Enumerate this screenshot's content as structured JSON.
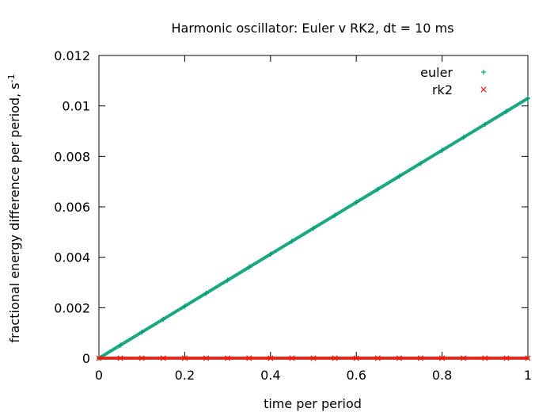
{
  "chart_data": {
    "type": "scatter",
    "title": "Harmonic oscillator: Euler v RK2, dt = 10 ms",
    "xlabel": "time per period",
    "ylabel_main": "fractional energy difference per period, s",
    "ylabel_sup": "-1",
    "xlim": [
      0,
      1
    ],
    "ylim": [
      0,
      0.012
    ],
    "xticks": [
      0,
      0.2,
      0.4,
      0.6,
      0.8,
      1
    ],
    "xtick_labels": [
      "0",
      "0.2",
      "0.4",
      "0.6",
      "0.8",
      "1"
    ],
    "yticks": [
      0,
      0.002,
      0.004,
      0.006,
      0.008,
      0.01,
      0.012
    ],
    "ytick_labels": [
      "0",
      "0.002",
      "0.004",
      "0.006",
      "0.008",
      "0.01",
      "0.012"
    ],
    "grid": false,
    "legend_position": "top-right",
    "series": [
      {
        "name": "euler",
        "marker": "plus",
        "color": "#009e73",
        "x": [
          0,
          0.05,
          0.1,
          0.15,
          0.2,
          0.25,
          0.3,
          0.35,
          0.4,
          0.45,
          0.5,
          0.55,
          0.6,
          0.65,
          0.7,
          0.75,
          0.8,
          0.85,
          0.9,
          0.95,
          1.0
        ],
        "y": [
          0,
          0.000515,
          0.00103,
          0.001545,
          0.00206,
          0.002575,
          0.00309,
          0.003605,
          0.00412,
          0.004635,
          0.00515,
          0.005665,
          0.00618,
          0.006695,
          0.00721,
          0.007725,
          0.00824,
          0.008755,
          0.00927,
          0.009785,
          0.0103
        ]
      },
      {
        "name": "rk2",
        "marker": "cross",
        "color": "#e51e10",
        "x": [
          0,
          0.05,
          0.1,
          0.15,
          0.2,
          0.25,
          0.3,
          0.35,
          0.4,
          0.45,
          0.5,
          0.55,
          0.6,
          0.65,
          0.7,
          0.75,
          0.8,
          0.85,
          0.9,
          0.95,
          1.0
        ],
        "y": [
          0,
          0,
          0,
          0,
          0,
          0,
          0,
          0,
          0,
          0,
          0,
          0,
          0,
          0,
          0,
          0,
          0,
          0,
          0,
          0,
          0
        ]
      }
    ]
  }
}
